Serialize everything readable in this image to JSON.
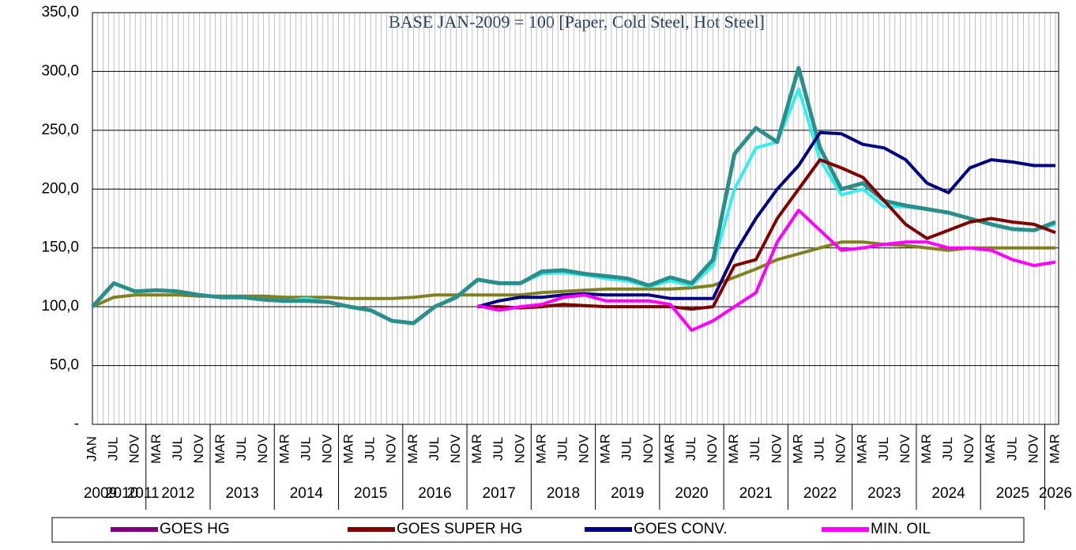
{
  "chart_data": {
    "type": "line",
    "subtitle": "BASE JAN-2009 = 100 [Paper, Cold Steel, Hot Steel]",
    "categories": [
      "JAN",
      "JUL",
      "NOV",
      "MAR",
      "JUL",
      "NOV",
      "MAR",
      "JUL",
      "NOV",
      "MAR",
      "JUL",
      "NOV",
      "MAR",
      "JUL",
      "NOV",
      "MAR",
      "JUL",
      "NOV",
      "MAR",
      "JUL",
      "NOV",
      "MAR",
      "JUL",
      "NOV",
      "MAR",
      "JUL",
      "NOV",
      "MAR",
      "JUL",
      "NOV",
      "MAR",
      "JUL",
      "NOV",
      "MAR",
      "JUL",
      "NOV",
      "MAR",
      "JUL",
      "NOV",
      "MAR",
      "JUL",
      "NOV",
      "MAR",
      "JUL",
      "NOV",
      "MAR"
    ],
    "years": [
      "2009",
      "2010",
      "2011",
      "2012",
      null,
      null,
      "2013",
      null,
      null,
      "2014",
      null,
      null,
      "2015",
      null,
      null,
      "2016",
      null,
      null,
      "2017",
      null,
      null,
      "2018",
      null,
      null,
      "2019",
      null,
      null,
      "2020",
      null,
      null,
      "2021",
      null,
      null,
      "2022",
      null,
      null,
      "2023",
      null,
      null,
      "2024",
      null,
      null,
      "2025",
      null,
      null,
      "2026"
    ],
    "ylim": [
      0,
      350
    ],
    "yticks": [
      {
        "value": 0,
        "label": "-"
      },
      {
        "value": 50,
        "label": "50,0"
      },
      {
        "value": 100,
        "label": "100,0"
      },
      {
        "value": 150,
        "label": "150,0"
      },
      {
        "value": 200,
        "label": "200,0"
      },
      {
        "value": 250,
        "label": "250,0"
      },
      {
        "value": 300,
        "label": "300,0"
      },
      {
        "value": 350,
        "label": "350,0"
      }
    ],
    "grid": true,
    "series": [
      {
        "color": "#808020",
        "width": 4,
        "values": [
          100,
          108,
          110,
          110,
          110,
          109,
          109,
          109,
          109,
          108,
          108,
          108,
          107,
          107,
          107,
          108,
          110,
          110,
          110,
          110,
          110,
          112,
          113,
          114,
          115,
          115,
          115,
          115,
          116,
          118,
          125,
          132,
          140,
          145,
          150,
          155,
          155,
          153,
          152,
          150,
          148,
          150,
          150,
          150,
          150,
          150
        ]
      },
      {
        "color": "#33eeee",
        "width": 4,
        "values": [
          100,
          120,
          113,
          114,
          113,
          110,
          108,
          108,
          106,
          105,
          107,
          104,
          100,
          97,
          88,
          86,
          100,
          108,
          123,
          120,
          120,
          128,
          129,
          127,
          124,
          122,
          117,
          122,
          118,
          135,
          200,
          235,
          240,
          285,
          225,
          195,
          200,
          185,
          185,
          183,
          180,
          175,
          170,
          166,
          165,
          170
        ]
      },
      {
        "color": "#2a8f8a",
        "width": 5,
        "values": [
          100,
          120,
          113,
          114,
          113,
          110,
          108,
          108,
          106,
          105,
          105,
          104,
          100,
          97,
          88,
          86,
          100,
          108,
          123,
          120,
          120,
          130,
          131,
          128,
          126,
          124,
          118,
          125,
          120,
          140,
          230,
          252,
          240,
          303,
          235,
          200,
          205,
          190,
          186,
          183,
          180,
          175,
          170,
          166,
          165,
          172
        ]
      },
      {
        "name": "GOES HG",
        "color": "#800080",
        "width": 4,
        "values": [
          null,
          null,
          null,
          null,
          null,
          null,
          null,
          null,
          null,
          null,
          null,
          null,
          null,
          null,
          null,
          null,
          null,
          null,
          null,
          null,
          null,
          null,
          null,
          null,
          null,
          null,
          null,
          null,
          null,
          null,
          null,
          null,
          null,
          null,
          null,
          null,
          null,
          null,
          null,
          null,
          null,
          null,
          null,
          null,
          null,
          null
        ]
      },
      {
        "name": "GOES SUPER HG",
        "color": "#800000",
        "width": 4,
        "values": [
          null,
          null,
          null,
          null,
          null,
          null,
          null,
          null,
          null,
          null,
          null,
          null,
          null,
          null,
          null,
          null,
          null,
          null,
          100,
          100,
          99,
          100,
          102,
          101,
          100,
          100,
          100,
          100,
          98,
          100,
          135,
          140,
          175,
          200,
          225,
          218,
          210,
          190,
          170,
          158,
          165,
          172,
          175,
          172,
          170,
          163
        ]
      },
      {
        "name": "GOES CONV.",
        "color": "#000080",
        "width": 4,
        "values": [
          null,
          null,
          null,
          null,
          null,
          null,
          null,
          null,
          null,
          null,
          null,
          null,
          null,
          null,
          null,
          null,
          null,
          null,
          100,
          105,
          108,
          108,
          110,
          111,
          110,
          110,
          110,
          107,
          107,
          107,
          145,
          175,
          200,
          220,
          248,
          247,
          238,
          235,
          225,
          205,
          197,
          218,
          225,
          223,
          220,
          220
        ]
      },
      {
        "name": "MIN. OIL",
        "color": "#ff00ff",
        "width": 4,
        "values": [
          null,
          null,
          null,
          null,
          null,
          null,
          null,
          null,
          null,
          null,
          null,
          null,
          null,
          null,
          null,
          null,
          null,
          null,
          101,
          97,
          100,
          102,
          108,
          110,
          105,
          105,
          105,
          102,
          80,
          88,
          100,
          112,
          155,
          182,
          165,
          148,
          150,
          153,
          155,
          155,
          150,
          150,
          148,
          140,
          135,
          138
        ]
      }
    ]
  }
}
